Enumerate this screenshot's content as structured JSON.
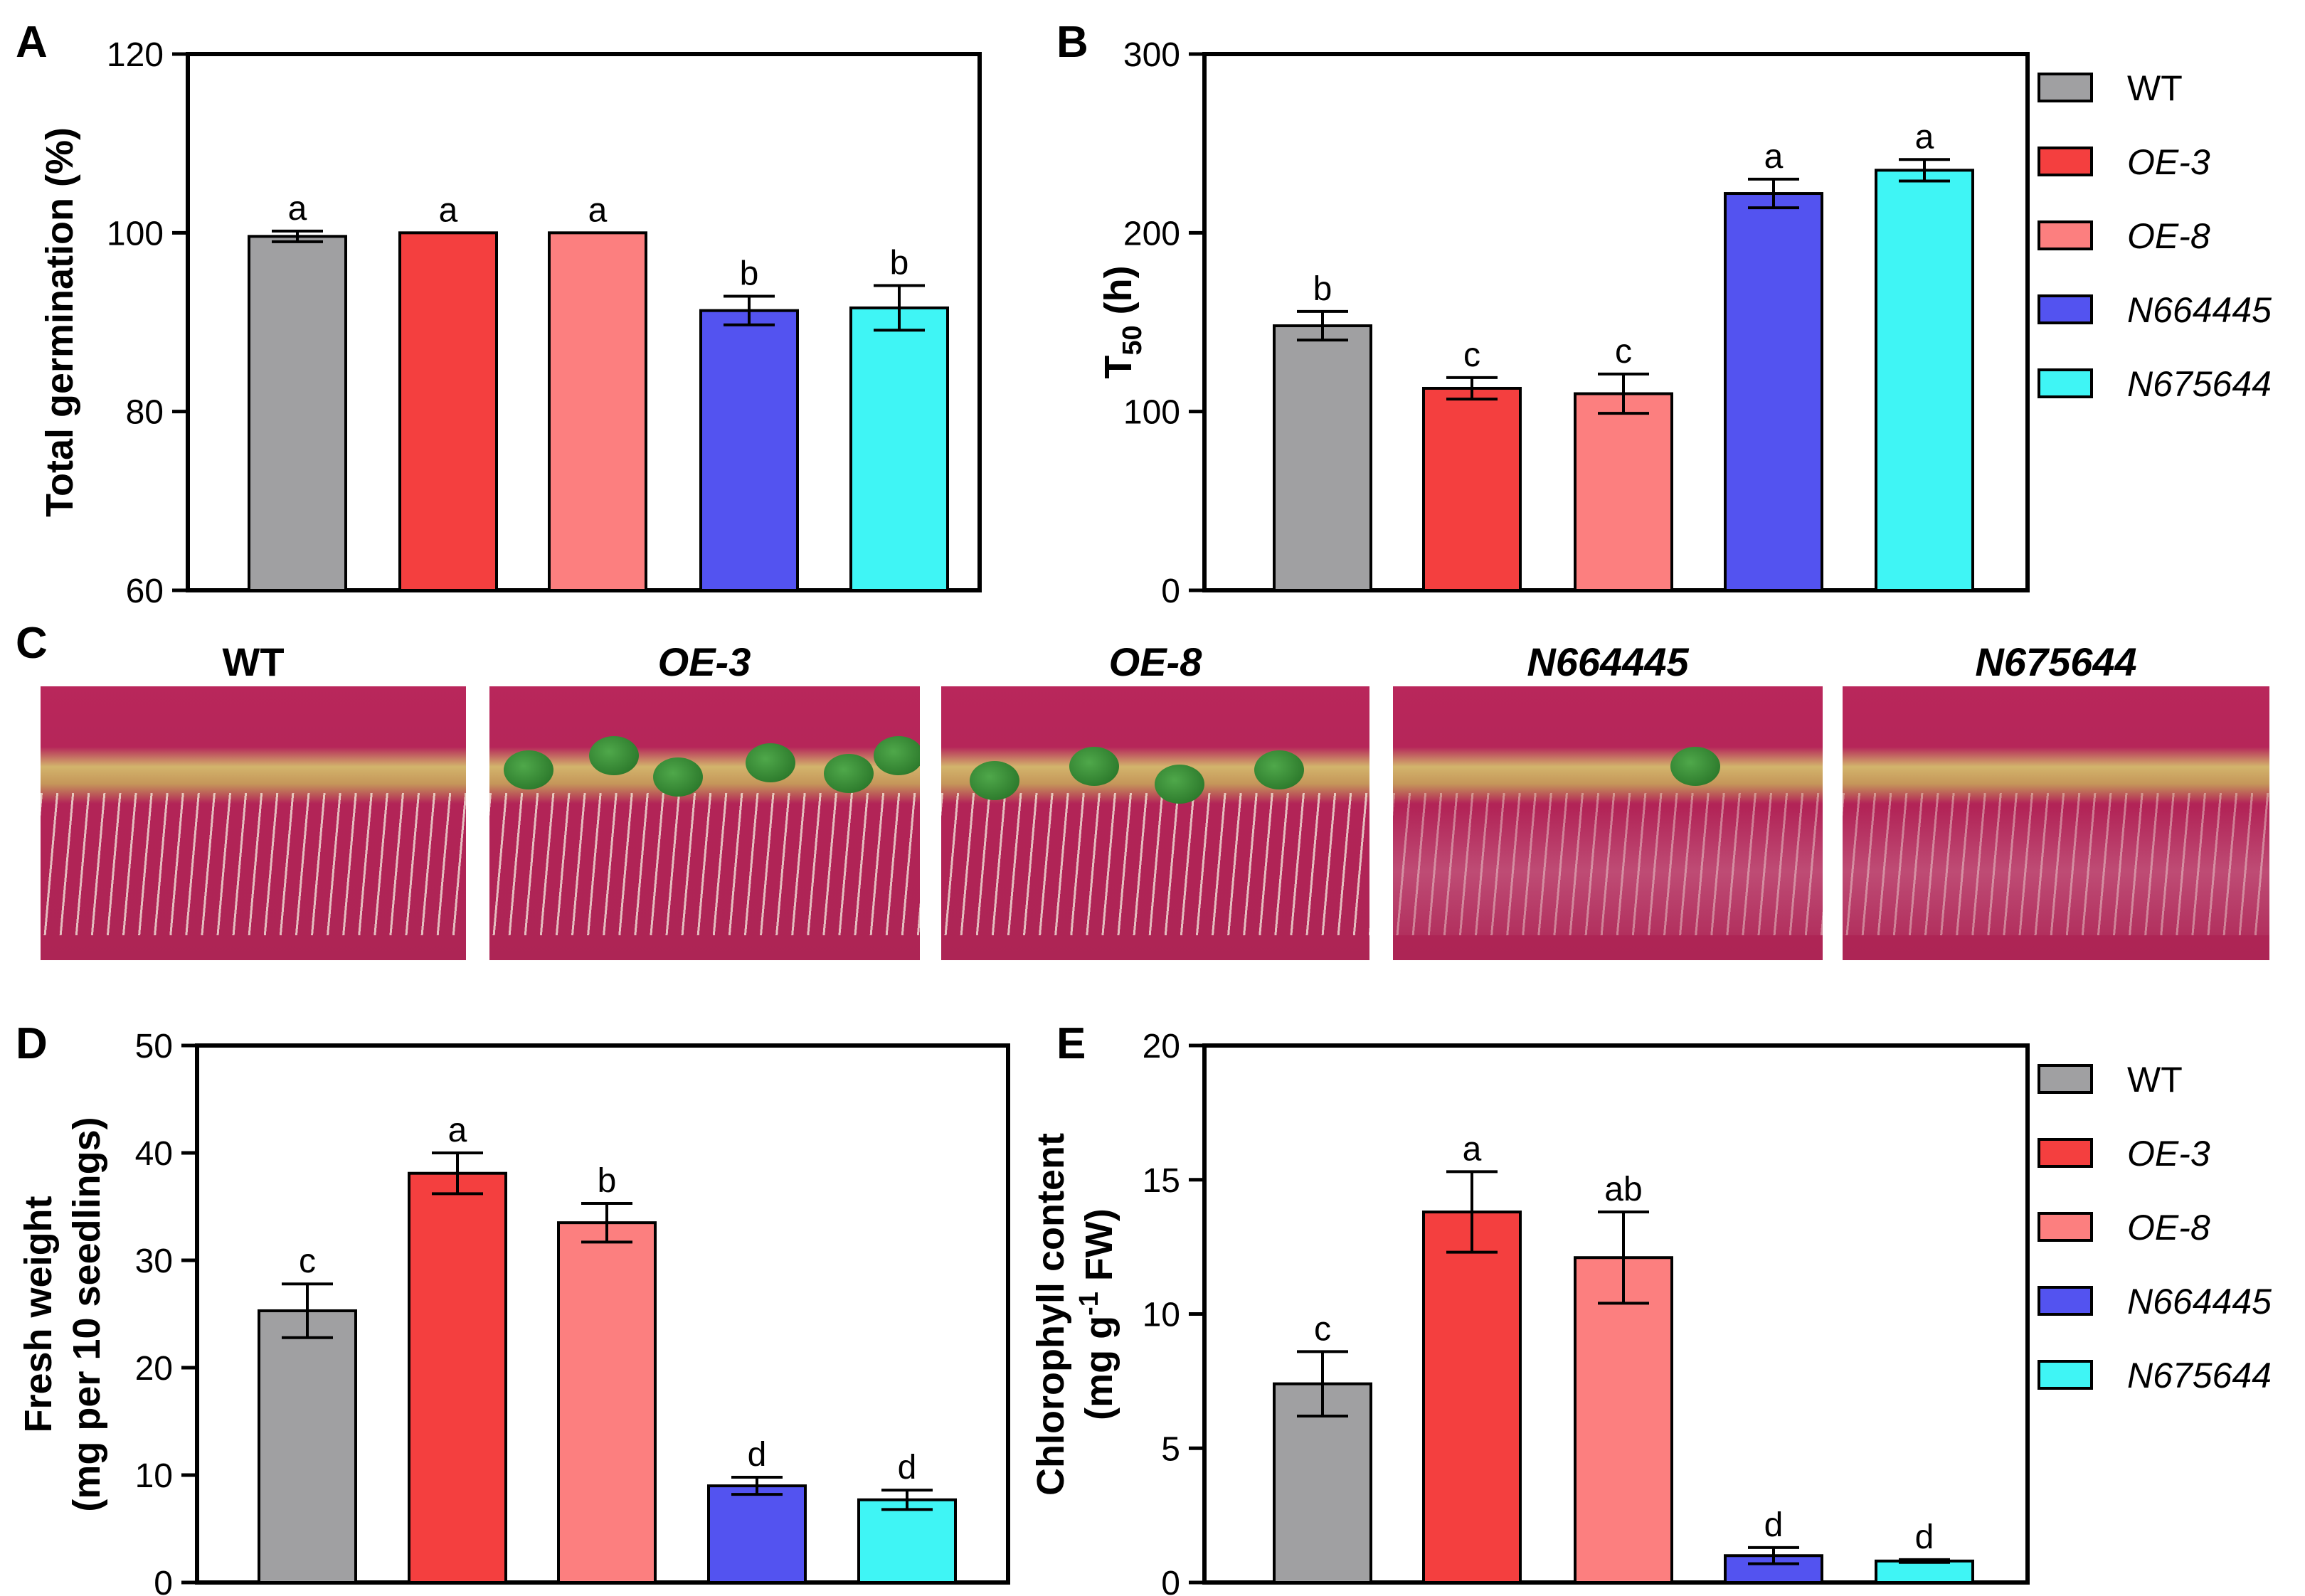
{
  "legend": [
    {
      "label": "WT",
      "color": "#a0a0a2",
      "italic": false
    },
    {
      "label": "OE-3",
      "color": "#f43f3f",
      "italic": true
    },
    {
      "label": "OE-8",
      "color": "#fc7f7f",
      "italic": true
    },
    {
      "label": "N664445",
      "color": "#5353f0",
      "italic": true
    },
    {
      "label": "N675644",
      "color": "#3ff5f5",
      "italic": true
    }
  ],
  "chart_data": [
    {
      "panel": "A",
      "type": "bar",
      "categories": [
        "WT",
        "OE-3",
        "OE-8",
        "N664445",
        "N675644"
      ],
      "values": [
        99.6,
        100,
        100,
        91.3,
        91.6
      ],
      "errors": [
        0.6,
        0,
        0,
        1.6,
        2.5
      ],
      "letters": [
        "a",
        "a",
        "a",
        "b",
        "b"
      ],
      "ylabel": "Total germination (%)",
      "ylim": [
        60,
        120
      ],
      "yticks": [
        "60",
        "80",
        "100",
        "120"
      ]
    },
    {
      "panel": "B",
      "type": "bar",
      "categories": [
        "WT",
        "OE-3",
        "OE-8",
        "N664445",
        "N675644"
      ],
      "values": [
        148,
        113,
        110,
        222,
        235
      ],
      "errors": [
        8,
        6,
        11,
        8,
        6
      ],
      "letters": [
        "b",
        "c",
        "c",
        "a",
        "a"
      ],
      "ylabel_main": "T",
      "ylabel_sub": "50",
      "ylabel_tail": " (h)",
      "ylim": [
        0,
        300
      ],
      "yticks": [
        "0",
        "100",
        "200",
        "300"
      ]
    },
    {
      "panel": "D",
      "type": "bar",
      "categories": [
        "WT",
        "OE-3",
        "OE-8",
        "N664445",
        "N675644"
      ],
      "values": [
        25.3,
        38.1,
        33.5,
        9.0,
        7.7
      ],
      "errors": [
        2.5,
        1.9,
        1.8,
        0.8,
        0.9
      ],
      "letters": [
        "c",
        "a",
        "b",
        "d",
        "d"
      ],
      "ylabel_line1": "Fresh weight",
      "ylabel_line2": "(mg per 10 seedlings)",
      "ylim": [
        0,
        50
      ],
      "yticks": [
        "0",
        "10",
        "20",
        "30",
        "40",
        "50"
      ]
    },
    {
      "panel": "E",
      "type": "bar",
      "categories": [
        "WT",
        "OE-3",
        "OE-8",
        "N664445",
        "N675644"
      ],
      "values": [
        7.4,
        13.8,
        12.1,
        1.0,
        0.8
      ],
      "errors": [
        1.2,
        1.5,
        1.7,
        0.3,
        0.05
      ],
      "letters": [
        "c",
        "a",
        "ab",
        "d",
        "d"
      ],
      "ylabel_line1": "Chlorophyll content",
      "ylabel_line2_a": "(mg g",
      "ylabel_line2_sup": "-1",
      "ylabel_line2_b": " FW)",
      "ylim": [
        0,
        20
      ],
      "yticks": [
        "0",
        "5",
        "10",
        "15",
        "20"
      ]
    }
  ],
  "photos": {
    "panel": "C",
    "labels": [
      "WT",
      "OE-3",
      "OE-8",
      "N664445",
      "N675644"
    ]
  }
}
